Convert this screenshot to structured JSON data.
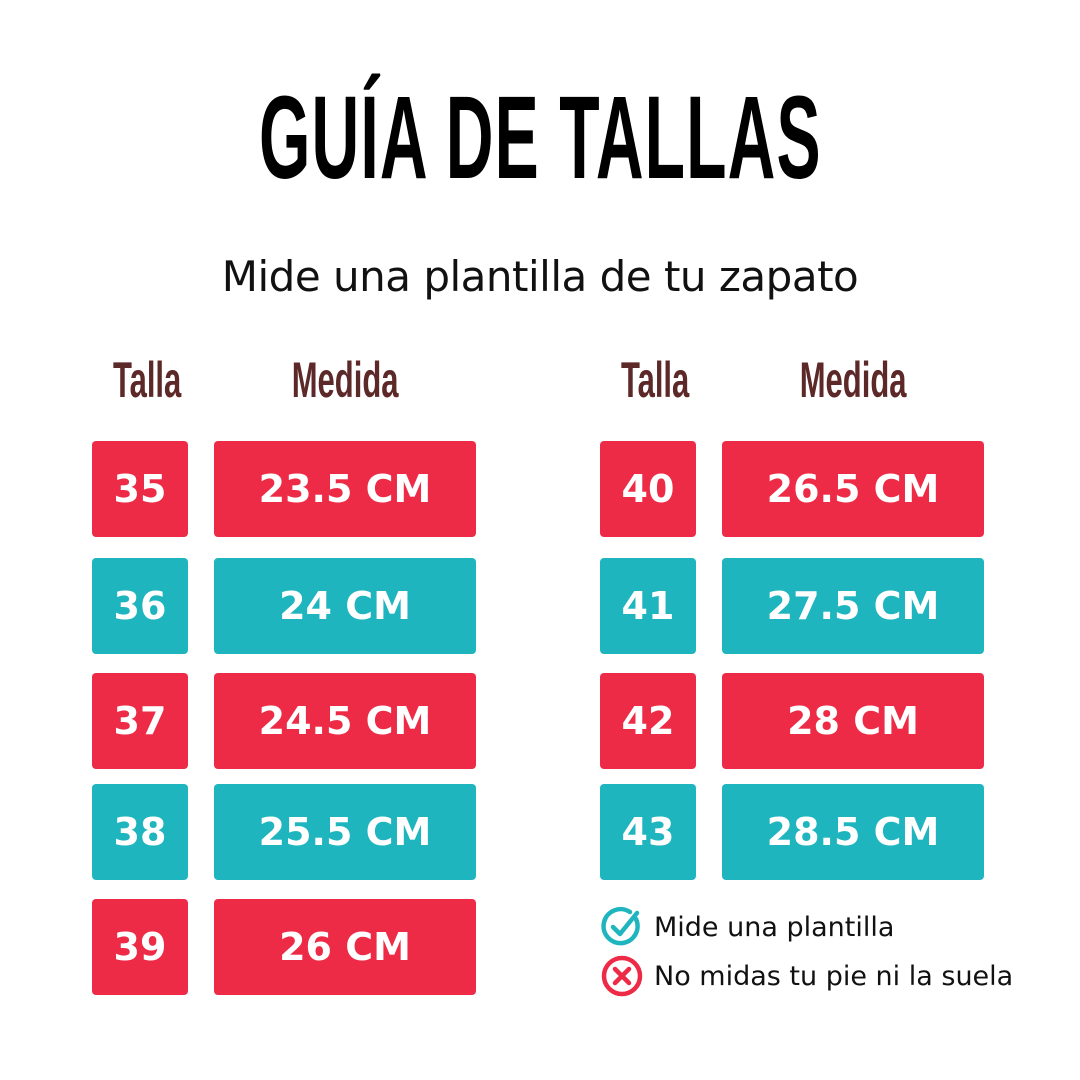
{
  "title": "GUÍA DE TALLAS",
  "subtitle": "Mide una plantilla de tu zapato",
  "headers": {
    "talla": "Talla",
    "medida": "Medida"
  },
  "colors": {
    "red": "#EE2B47",
    "teal": "#1FB5BF",
    "header": "#5C2828"
  },
  "left_rows": [
    {
      "talla": "35",
      "medida": "23.5 CM",
      "color": "red"
    },
    {
      "talla": "36",
      "medida": "24 CM",
      "color": "teal"
    },
    {
      "talla": "37",
      "medida": "24.5 CM",
      "color": "red"
    },
    {
      "talla": "38",
      "medida": "25.5 CM",
      "color": "teal"
    },
    {
      "talla": "39",
      "medida": "26 CM",
      "color": "red"
    }
  ],
  "right_rows": [
    {
      "talla": "40",
      "medida": "26.5 CM",
      "color": "red"
    },
    {
      "talla": "41",
      "medida": "27.5 CM",
      "color": "teal"
    },
    {
      "talla": "42",
      "medida": "28 CM",
      "color": "red"
    },
    {
      "talla": "43",
      "medida": "28.5 CM",
      "color": "teal"
    }
  ],
  "legend": [
    {
      "icon": "check-circle-icon",
      "text": "Mide una plantilla"
    },
    {
      "icon": "x-circle-icon",
      "text": "No midas tu pie ni la suela"
    }
  ]
}
